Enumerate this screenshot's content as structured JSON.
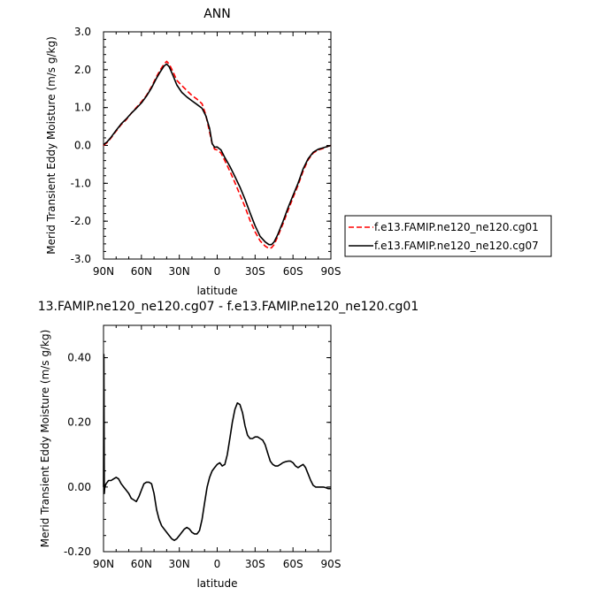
{
  "chart_data": [
    {
      "type": "line",
      "title": "ANN",
      "xlabel": "latitude",
      "ylabel": "Merid Transient Eddy Moisture (m/s g/kg)",
      "xlim": [
        90,
        -90
      ],
      "ylim": [
        -3.0,
        3.0
      ],
      "x_ticks": [
        {
          "value": 90,
          "label": "90N"
        },
        {
          "value": 60,
          "label": "60N"
        },
        {
          "value": 30,
          "label": "30N"
        },
        {
          "value": 0,
          "label": "0"
        },
        {
          "value": -30,
          "label": "30S"
        },
        {
          "value": -60,
          "label": "60S"
        },
        {
          "value": -90,
          "label": "90S"
        }
      ],
      "y_ticks": [
        {
          "value": 3.0,
          "label": "3.0"
        },
        {
          "value": 2.0,
          "label": "2.0"
        },
        {
          "value": 1.0,
          "label": "1.0"
        },
        {
          "value": 0.0,
          "label": "0.0"
        },
        {
          "value": -1.0,
          "label": "-1.0"
        },
        {
          "value": -2.0,
          "label": "-2.0"
        },
        {
          "value": -3.0,
          "label": "-3.0"
        }
      ],
      "legend": "outside-right",
      "grid": false,
      "series": [
        {
          "name": "f.e13.FAMIP.ne120_ne120.cg01",
          "color": "#ff0000",
          "dash": "dashed",
          "x": [
            90,
            87,
            84,
            80,
            76,
            72,
            68,
            64,
            60,
            56,
            52,
            48,
            45,
            42,
            40,
            38,
            35,
            32,
            28,
            24,
            20,
            16,
            12,
            9,
            6,
            4,
            2,
            0,
            -3,
            -6,
            -10,
            -14,
            -18,
            -22,
            -26,
            -30,
            -34,
            -38,
            -41,
            -43,
            -45,
            -48,
            -52,
            -56,
            -60,
            -64,
            -68,
            -72,
            -76,
            -80,
            -84,
            -88,
            -90
          ],
          "y": [
            0.0,
            0.08,
            0.2,
            0.38,
            0.55,
            0.68,
            0.85,
            1.0,
            1.15,
            1.32,
            1.55,
            1.82,
            2.0,
            2.15,
            2.22,
            2.15,
            1.95,
            1.72,
            1.58,
            1.45,
            1.32,
            1.22,
            1.1,
            0.8,
            0.35,
            0.05,
            -0.1,
            -0.12,
            -0.2,
            -0.4,
            -0.68,
            -0.98,
            -1.3,
            -1.62,
            -1.98,
            -2.28,
            -2.52,
            -2.66,
            -2.72,
            -2.7,
            -2.62,
            -2.4,
            -2.08,
            -1.72,
            -1.38,
            -1.05,
            -0.68,
            -0.38,
            -0.2,
            -0.12,
            -0.08,
            -0.02,
            0.0
          ]
        },
        {
          "name": "f.e13.FAMIP.ne120_ne120.cg07",
          "color": "#000000",
          "dash": "solid",
          "x": [
            90,
            87,
            84,
            80,
            76,
            72,
            68,
            64,
            60,
            56,
            52,
            48,
            45,
            42,
            40,
            38,
            35,
            32,
            28,
            24,
            20,
            16,
            12,
            9,
            6,
            4,
            2,
            0,
            -3,
            -6,
            -10,
            -14,
            -18,
            -22,
            -26,
            -30,
            -34,
            -38,
            -41,
            -43,
            -45,
            -48,
            -52,
            -56,
            -60,
            -64,
            -68,
            -72,
            -76,
            -80,
            -84,
            -88,
            -90
          ],
          "y": [
            0.02,
            0.1,
            0.22,
            0.4,
            0.57,
            0.7,
            0.85,
            0.98,
            1.12,
            1.3,
            1.52,
            1.78,
            1.95,
            2.1,
            2.15,
            2.08,
            1.85,
            1.6,
            1.4,
            1.28,
            1.18,
            1.08,
            0.98,
            0.78,
            0.45,
            0.05,
            -0.05,
            -0.04,
            -0.12,
            -0.32,
            -0.55,
            -0.82,
            -1.1,
            -1.42,
            -1.78,
            -2.12,
            -2.4,
            -2.55,
            -2.62,
            -2.62,
            -2.55,
            -2.35,
            -2.02,
            -1.65,
            -1.32,
            -1.0,
            -0.62,
            -0.35,
            -0.18,
            -0.1,
            -0.06,
            -0.02,
            0.0
          ]
        }
      ]
    },
    {
      "type": "line",
      "title": "13.FAMIP.ne120_ne120.cg07 - f.e13.FAMIP.ne120_ne120.cg01",
      "xlabel": "latitude",
      "ylabel": "Merid Transient Eddy Moisture (m/s g/kg)",
      "xlim": [
        90,
        -90
      ],
      "ylim": [
        -0.2,
        0.5
      ],
      "x_ticks": [
        {
          "value": 90,
          "label": "90N"
        },
        {
          "value": 60,
          "label": "60N"
        },
        {
          "value": 30,
          "label": "30N"
        },
        {
          "value": 0,
          "label": "0"
        },
        {
          "value": -30,
          "label": "30S"
        },
        {
          "value": -60,
          "label": "60S"
        },
        {
          "value": -90,
          "label": "90S"
        }
      ],
      "y_ticks": [
        {
          "value": 0.4,
          "label": "0.40"
        },
        {
          "value": 0.2,
          "label": "0.20"
        },
        {
          "value": 0.0,
          "label": "0.00"
        },
        {
          "value": -0.2,
          "label": "-0.20"
        }
      ],
      "grid": false,
      "series": [
        {
          "color": "#000000",
          "dash": "solid",
          "x": [
            90,
            89.7,
            89.4,
            89,
            88,
            86,
            84,
            82,
            80,
            78,
            76,
            74,
            72,
            70,
            68,
            66,
            64,
            62,
            60,
            58,
            56,
            54,
            52,
            50,
            48,
            46,
            44,
            42,
            40,
            38,
            36,
            34,
            32,
            30,
            28,
            26,
            24,
            22,
            20,
            18,
            16,
            14,
            12,
            10,
            8,
            6,
            4,
            2,
            0,
            -2,
            -4,
            -6,
            -8,
            -10,
            -12,
            -14,
            -16,
            -18,
            -20,
            -22,
            -24,
            -26,
            -28,
            -30,
            -32,
            -34,
            -36,
            -38,
            -40,
            -42,
            -44,
            -46,
            -48,
            -50,
            -52,
            -54,
            -56,
            -58,
            -60,
            -62,
            -64,
            -66,
            -68,
            -70,
            -72,
            -74,
            -76,
            -78,
            -80,
            -82,
            -84,
            -86,
            -88,
            -90
          ],
          "y": [
            0.0,
            0.41,
            -0.02,
            0.0,
            0.01,
            0.02,
            0.02,
            0.025,
            0.03,
            0.025,
            0.01,
            0.0,
            -0.01,
            -0.02,
            -0.035,
            -0.04,
            -0.045,
            -0.03,
            -0.01,
            0.01,
            0.015,
            0.015,
            0.01,
            -0.02,
            -0.07,
            -0.1,
            -0.12,
            -0.13,
            -0.14,
            -0.15,
            -0.16,
            -0.165,
            -0.16,
            -0.15,
            -0.14,
            -0.13,
            -0.125,
            -0.13,
            -0.14,
            -0.145,
            -0.145,
            -0.135,
            -0.1,
            -0.05,
            0.0,
            0.03,
            0.05,
            0.06,
            0.07,
            0.075,
            0.065,
            0.07,
            0.1,
            0.15,
            0.2,
            0.24,
            0.26,
            0.255,
            0.23,
            0.19,
            0.16,
            0.15,
            0.15,
            0.155,
            0.155,
            0.15,
            0.145,
            0.13,
            0.105,
            0.08,
            0.07,
            0.065,
            0.065,
            0.07,
            0.075,
            0.078,
            0.08,
            0.08,
            0.075,
            0.065,
            0.06,
            0.065,
            0.07,
            0.06,
            0.04,
            0.02,
            0.005,
            0.0,
            0.0,
            0.0,
            0.0,
            -0.002,
            -0.005,
            -0.005
          ]
        }
      ]
    }
  ]
}
